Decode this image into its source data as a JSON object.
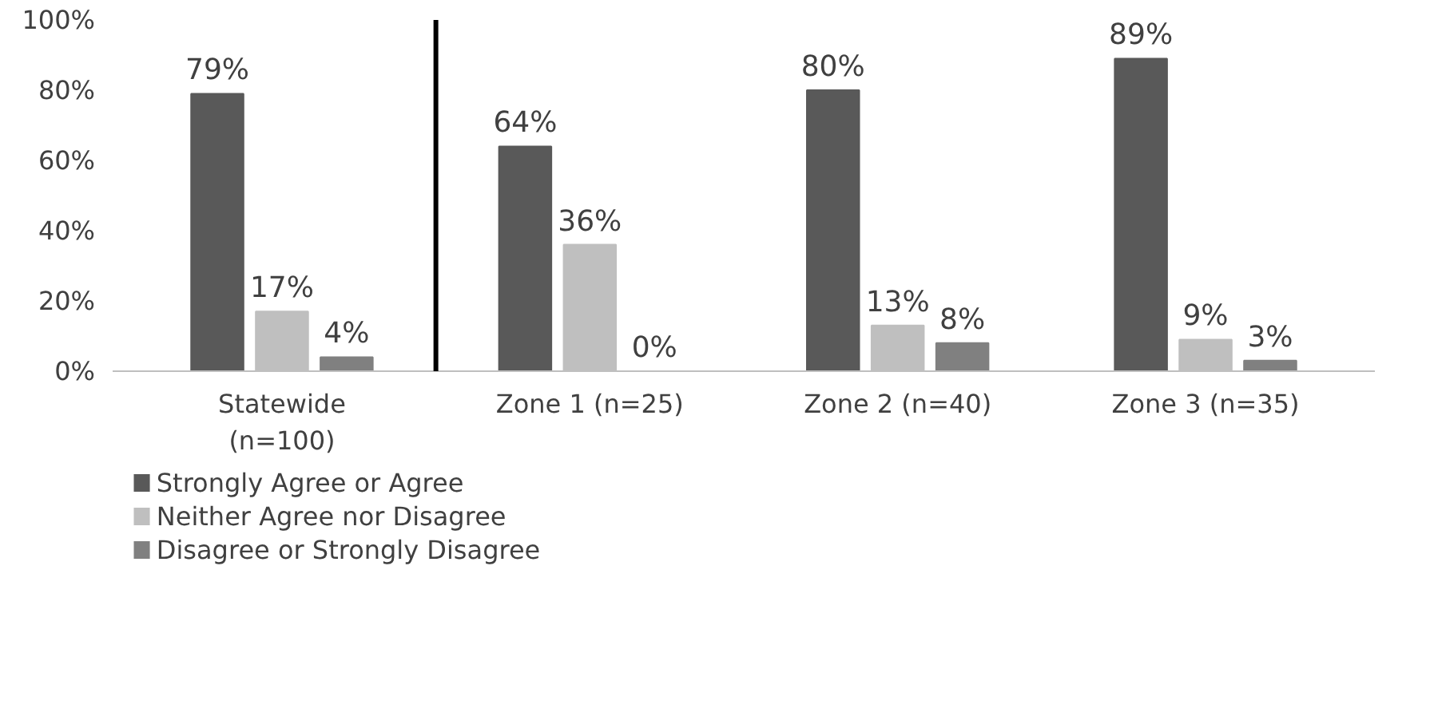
{
  "chart_data": {
    "type": "bar",
    "categories": [
      "Statewide\n(n=100)",
      "Zone 1 (n=25)",
      "Zone 2 (n=40)",
      "Zone 3 (n=35)"
    ],
    "series": [
      {
        "name": "Strongly Agree or Agree",
        "color": "#595959",
        "values": [
          79,
          64,
          80,
          89
        ],
        "value_labels": [
          "79%",
          "64%",
          "80%",
          "89%"
        ]
      },
      {
        "name": "Neither Agree nor Disagree",
        "color": "#bfbfbf",
        "values": [
          17,
          36,
          13,
          9
        ],
        "value_labels": [
          "17%",
          "36%",
          "13%",
          "9%"
        ]
      },
      {
        "name": "Disagree or Strongly Disagree",
        "color": "#808080",
        "values": [
          4,
          0,
          8,
          3
        ],
        "value_labels": [
          "4%",
          "0%",
          "8%",
          "3%"
        ]
      }
    ],
    "ylim": [
      0,
      100
    ],
    "yticks": [
      {
        "value": 0,
        "label": "0%"
      },
      {
        "value": 20,
        "label": "20%"
      },
      {
        "value": 40,
        "label": "40%"
      },
      {
        "value": 60,
        "label": "60%"
      },
      {
        "value": 80,
        "label": "80%"
      },
      {
        "value": 100,
        "label": "100%"
      }
    ],
    "grid": false,
    "legend": "bottom left"
  }
}
